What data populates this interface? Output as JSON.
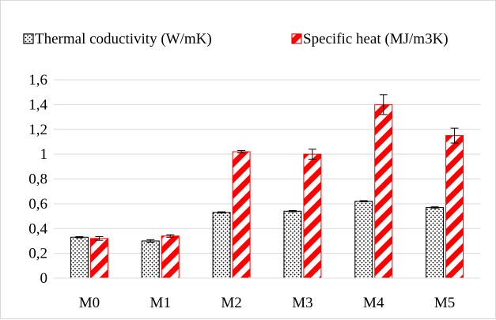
{
  "chart_data": {
    "type": "bar",
    "title": "",
    "xlabel": "",
    "ylabel": "",
    "categories": [
      "M0",
      "M1",
      "M2",
      "M3",
      "M4",
      "M5"
    ],
    "ylim": [
      0,
      1.6
    ],
    "yticks": [
      "0",
      "0,2",
      "0,4",
      "0,6",
      "0,8",
      "1",
      "1,2",
      "1,4",
      "1,6"
    ],
    "grid": true,
    "legend_position": "top",
    "series": [
      {
        "name": "Thermal coductivity (W/mK)",
        "values": [
          0.33,
          0.3,
          0.53,
          0.54,
          0.62,
          0.57
        ],
        "errors": [
          0.005,
          0.01,
          0.005,
          0.005,
          0.005,
          0.005
        ],
        "fill": "dotted",
        "color": "#000000"
      },
      {
        "name": "Specific heat (MJ/m3K)",
        "values": [
          0.32,
          0.34,
          1.02,
          1.0,
          1.4,
          1.15
        ],
        "errors": [
          0.015,
          0.01,
          0.01,
          0.04,
          0.08,
          0.06
        ],
        "fill": "diagonal-stripes",
        "color": "#ff0000"
      }
    ]
  }
}
